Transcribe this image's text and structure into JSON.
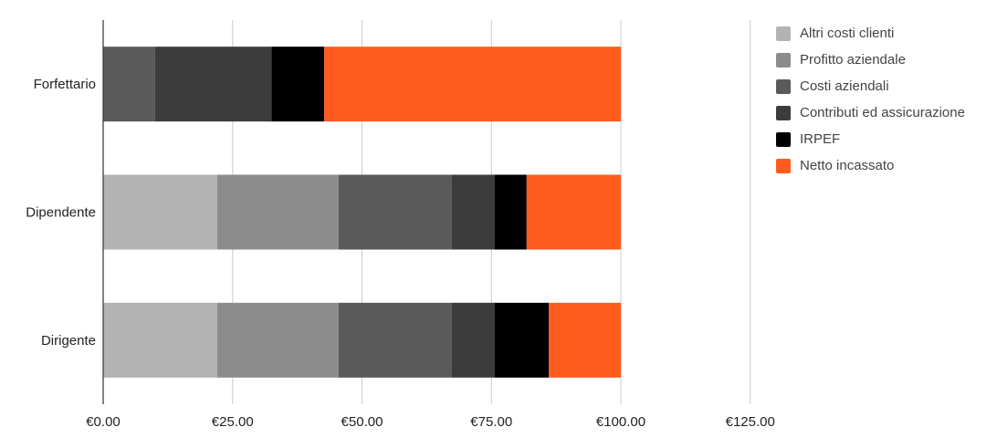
{
  "chart_data": {
    "type": "bar",
    "orientation": "horizontal",
    "stacked": true,
    "categories": [
      "Forfettario",
      "Dipendente",
      "Dirigente"
    ],
    "series": [
      {
        "name": "Altri costi clienti",
        "color": "#b3b3b3",
        "values": [
          0,
          22.0,
          22.0
        ]
      },
      {
        "name": "Profitto aziendale",
        "color": "#8c8c8c",
        "values": [
          0,
          23.5,
          23.5
        ]
      },
      {
        "name": "Costi aziendali",
        "color": "#5a5a5a",
        "values": [
          10.0,
          21.8,
          21.8
        ]
      },
      {
        "name": "Contributi ed assicurazione",
        "color": "#3c3c3c",
        "values": [
          22.5,
          8.3,
          8.3
        ]
      },
      {
        "name": "IRPEF",
        "color": "#000000",
        "values": [
          10.2,
          6.2,
          10.5
        ]
      },
      {
        "name": "Netto incassato",
        "color": "#ff5b1f",
        "values": [
          57.3,
          18.2,
          13.9
        ]
      }
    ],
    "xlim": [
      0,
      125
    ],
    "xticks": [
      {
        "value": 0,
        "label": "€0.00"
      },
      {
        "value": 25,
        "label": "€25.00"
      },
      {
        "value": 50,
        "label": "€50.00"
      },
      {
        "value": 75,
        "label": "€75.00"
      },
      {
        "value": 100,
        "label": "€100.00"
      },
      {
        "value": 125,
        "label": "€125.00"
      }
    ],
    "grid": "vertical",
    "legend_position": "right"
  }
}
